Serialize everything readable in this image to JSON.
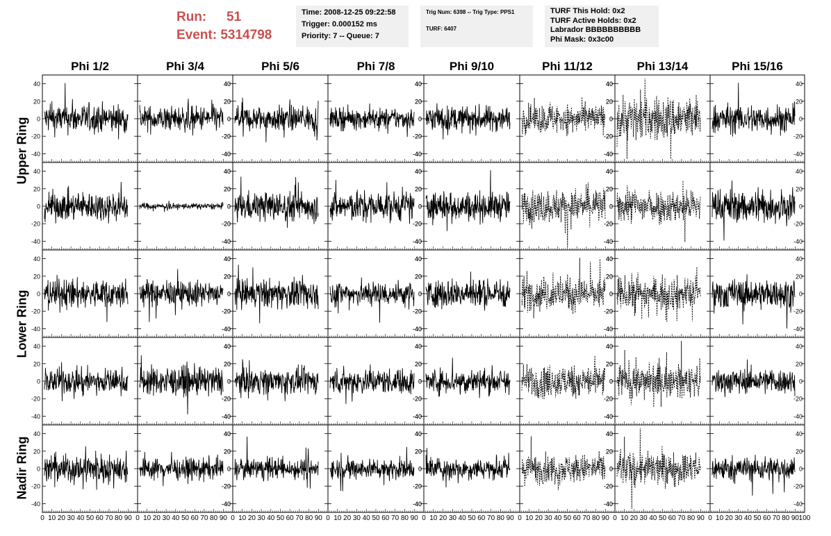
{
  "header": {
    "run_label": "Run:",
    "run_value": "51",
    "event_label": "Event:",
    "event_value": "5314798"
  },
  "time_box": {
    "line1": "Time: 2008-12-25 09:22:58",
    "line2": "Trigger: 0.000152 ms",
    "line3": "Priority: 7 -- Queue: 7"
  },
  "trig_box": {
    "line1": "Trig Num: 6398 -- Trig Type: PPS1",
    "line2": "TURF: 6407"
  },
  "turf_box": {
    "line1": "TURF This Hold: 0x2",
    "line2": "TURF Active Holds: 0x2",
    "line3": "Labrador BBBBBBBBBB",
    "line4": "Phi Mask: 0x3c00"
  },
  "columns": [
    "Phi 1/2",
    "Phi 3/4",
    "Phi 5/6",
    "Phi 7/8",
    "Phi 9/10",
    "Phi 11/12",
    "Phi 13/14",
    "Phi 15/16"
  ],
  "rows": [
    "Upper Ring",
    "Upper Ring",
    "Lower Ring",
    "Lower Ring",
    "Nadir Ring"
  ],
  "row_labels": [
    "Upper Ring",
    "Lower Ring",
    "Nadir Ring"
  ],
  "masked_columns": [
    5,
    6
  ],
  "chart_data": {
    "type": "line",
    "xlim": [
      0,
      100
    ],
    "ylim": [
      -50,
      50
    ],
    "y_ticks": [
      -40,
      -20,
      0,
      20,
      40
    ],
    "x_ticks": [
      0,
      10,
      20,
      30,
      40,
      50,
      60,
      70,
      80,
      90,
      100
    ],
    "grid": false,
    "amplitude_rows": [
      [
        14,
        12,
        12,
        10,
        12,
        14,
        22,
        14
      ],
      [
        14,
        3,
        14,
        14,
        14,
        16,
        16,
        16
      ],
      [
        14,
        12,
        14,
        12,
        14,
        16,
        16,
        14
      ],
      [
        12,
        14,
        12,
        12,
        12,
        16,
        16,
        12
      ],
      [
        14,
        10,
        10,
        10,
        10,
        14,
        16,
        12
      ]
    ]
  }
}
